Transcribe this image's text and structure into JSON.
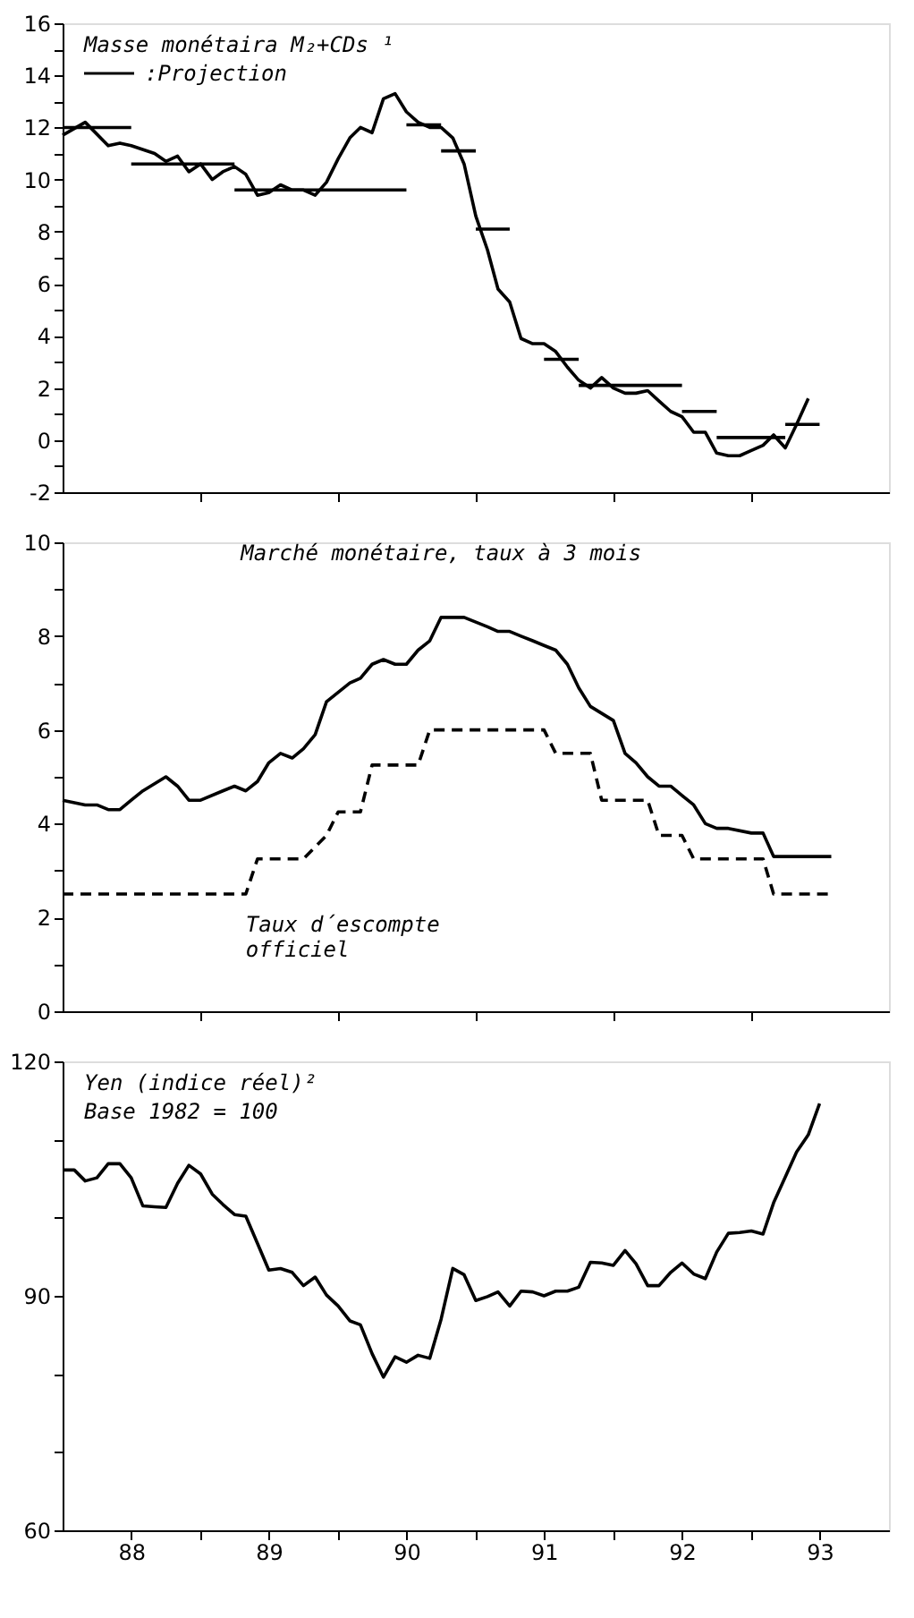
{
  "chart_data": [
    {
      "type": "line",
      "title": "Masse monétaira M₂+CDs ¹",
      "legend": "top left",
      "tick_labels": "y",
      "grid": false,
      "marker": "none",
      "xlim": [
        "1988-01",
        "1994-01"
      ],
      "xticks": [
        {
          "value": "1989-01",
          "label": null
        },
        {
          "value": "1990-01",
          "label": null
        },
        {
          "value": "1991-01",
          "label": null
        },
        {
          "value": "1992-01",
          "label": null
        },
        {
          "value": "1993-01",
          "label": null
        }
      ],
      "ylim": [
        -2,
        16
      ],
      "yticks": [
        -2,
        {
          "value": -1,
          "label": null
        },
        0,
        {
          "value": 1,
          "label": null
        },
        2,
        {
          "value": 3,
          "label": null
        },
        4,
        {
          "value": 5,
          "label": null
        },
        6,
        {
          "value": 7,
          "label": null
        },
        8,
        {
          "value": 9,
          "label": null
        },
        10,
        {
          "value": 11,
          "label": null
        },
        12,
        {
          "value": 13,
          "label": null
        },
        14,
        {
          "value": 15,
          "label": null
        },
        16
      ],
      "series": [
        {
          "color": "#000000",
          "line_style": "solid",
          "x": [
            "1988-01",
            "1988-03",
            "1988-05",
            "1988-06",
            "1988-07",
            "1988-09",
            "1988-10",
            "1988-11",
            "1988-12",
            "1989-01",
            "1989-02",
            "1989-03",
            "1989-04",
            "1989-05",
            "1989-06",
            "1989-07",
            "1989-08",
            "1989-09",
            "1989-10",
            "1989-11",
            "1989-12",
            "1990-01",
            "1990-02",
            "1990-03",
            "1990-04",
            "1990-05",
            "1990-06",
            "1990-07",
            "1990-08",
            "1990-09",
            "1990-10",
            "1990-11",
            "1990-12",
            "1991-01",
            "1991-02",
            "1991-03",
            "1991-04",
            "1991-05",
            "1991-06",
            "1991-07",
            "1991-08",
            "1991-09",
            "1991-10",
            "1991-11",
            "1991-12",
            "1992-01",
            "1992-02",
            "1992-03",
            "1992-04",
            "1992-05",
            "1992-06",
            "1992-07",
            "1992-08",
            "1992-09",
            "1992-10",
            "1992-11",
            "1992-12",
            "1993-01",
            "1993-02",
            "1993-03",
            "1993-04",
            "1993-05",
            "1993-06"
          ],
          "values": [
            11.7,
            12.2,
            11.3,
            11.4,
            11.3,
            11.0,
            10.7,
            10.9,
            10.3,
            10.6,
            10.0,
            10.3,
            10.5,
            10.2,
            9.4,
            9.5,
            9.8,
            9.6,
            9.6,
            9.4,
            9.9,
            10.8,
            11.6,
            12.0,
            11.8,
            13.1,
            13.3,
            12.6,
            12.2,
            12.0,
            12.0,
            11.6,
            10.6,
            8.6,
            7.3,
            5.8,
            5.3,
            3.9,
            3.7,
            3.7,
            3.4,
            2.8,
            2.3,
            2.0,
            2.4,
            2.0,
            1.8,
            1.8,
            1.9,
            1.5,
            1.1,
            0.9,
            0.3,
            0.3,
            -0.5,
            -0.6,
            -0.6,
            -0.4,
            -0.2,
            0.2,
            -0.3,
            0.6,
            1.6
          ]
        },
        {
          "name": ":Projection",
          "color": "#000000",
          "line_style": "solid",
          "x": [
            "1988-01",
            "1988-07",
            null,
            "1988-07",
            "1989-04",
            null,
            "1989-04",
            "1990-07",
            null,
            "1990-07",
            "1990-10",
            null,
            "1990-10",
            "1991-01",
            null,
            "1991-01",
            "1991-04",
            null,
            "1991-07",
            "1991-10",
            null,
            "1991-10",
            "1992-07",
            null,
            "1992-07",
            "1992-10",
            null,
            "1992-10",
            "1993-04",
            null,
            "1993-04",
            "1993-07"
          ],
          "values": [
            12.0,
            12.0,
            null,
            10.6,
            10.6,
            null,
            9.6,
            9.6,
            null,
            12.1,
            12.1,
            null,
            11.1,
            11.1,
            null,
            8.1,
            8.1,
            null,
            3.1,
            3.1,
            null,
            2.1,
            2.1,
            null,
            1.1,
            1.1,
            null,
            0.1,
            0.1,
            null,
            0.6,
            0.6
          ]
        }
      ]
    },
    {
      "type": "line",
      "legend": false,
      "tick_labels": "y",
      "grid": false,
      "marker": "none",
      "xlim": [
        "1988-01",
        "1994-01"
      ],
      "xticks": [
        {
          "value": "1989-01",
          "label": null
        },
        {
          "value": "1990-01",
          "label": null
        },
        {
          "value": "1991-01",
          "label": null
        },
        {
          "value": "1992-01",
          "label": null
        },
        {
          "value": "1993-01",
          "label": null
        }
      ],
      "ylim": [
        0,
        10
      ],
      "yticks": [
        0,
        {
          "value": 1,
          "label": null
        },
        2,
        {
          "value": 3,
          "label": null
        },
        4,
        {
          "value": 5,
          "label": null
        },
        6,
        {
          "value": 7,
          "label": null
        },
        8,
        {
          "value": 9,
          "label": null
        },
        10
      ],
      "series": [
        {
          "name": "Marché monétaire,  taux à 3 mois",
          "color": "#000000",
          "line_style": "solid",
          "x": [
            "1988-01",
            "1988-03",
            "1988-04",
            "1988-05",
            "1988-06",
            "1988-07",
            "1988-08",
            "1988-10",
            "1988-11",
            "1988-12",
            "1989-01",
            "1989-03",
            "1989-04",
            "1989-05",
            "1989-06",
            "1989-07",
            "1989-08",
            "1989-09",
            "1989-10",
            "1989-11",
            "1989-12",
            "1990-01",
            "1990-02",
            "1990-03",
            "1990-04",
            "1990-05",
            "1990-06",
            "1990-07",
            "1990-08",
            "1990-09",
            "1990-10",
            "1990-11",
            "1990-12",
            "1991-01",
            "1991-02",
            "1991-03",
            "1991-04",
            "1991-05",
            "1991-06",
            "1991-07",
            "1991-08",
            "1991-09",
            "1991-10",
            "1991-11",
            "1992-01",
            "1992-02",
            "1992-03",
            "1992-04",
            "1992-05",
            "1992-06",
            "1992-07",
            "1992-08",
            "1992-09",
            "1992-10",
            "1992-11",
            "1993-01",
            "1993-02",
            "1993-03",
            "1993-04",
            "1993-06",
            "1993-08"
          ],
          "values": [
            4.5,
            4.4,
            4.4,
            4.3,
            4.3,
            4.5,
            4.7,
            5.0,
            4.8,
            4.5,
            4.5,
            4.7,
            4.8,
            4.7,
            4.9,
            5.3,
            5.5,
            5.4,
            5.6,
            5.9,
            6.6,
            6.8,
            7.0,
            7.1,
            7.4,
            7.5,
            7.4,
            7.4,
            7.7,
            7.9,
            8.4,
            8.4,
            8.4,
            8.3,
            8.2,
            8.1,
            8.1,
            8.0,
            7.9,
            7.8,
            7.7,
            7.4,
            6.9,
            6.5,
            6.2,
            5.5,
            5.3,
            5.0,
            4.8,
            4.8,
            4.6,
            4.4,
            4.0,
            3.9,
            3.9,
            3.8,
            3.8,
            3.3,
            3.3,
            3.3,
            3.3
          ]
        },
        {
          "name": "Taux d´escompte\nofficiel",
          "color": "#000000",
          "line_style": "dashed",
          "x": [
            "1988-01",
            "1989-05",
            "1989-06",
            "1989-10",
            "1989-12",
            "1990-01",
            "1990-03",
            "1990-04",
            "1990-08",
            "1990-09",
            "1991-07",
            "1991-08",
            "1991-11",
            "1991-12",
            "1992-04",
            "1992-05",
            "1992-07",
            "1992-08",
            "1993-02",
            "1993-03",
            "1993-08"
          ],
          "values": [
            2.5,
            2.5,
            3.25,
            3.25,
            3.75,
            4.25,
            4.25,
            5.25,
            5.25,
            6.0,
            6.0,
            5.5,
            5.5,
            4.5,
            4.5,
            3.75,
            3.75,
            3.25,
            3.25,
            2.5,
            2.5
          ]
        }
      ]
    },
    {
      "type": "line",
      "title": "Yen (indice réel)²",
      "subtitle": "Base 1982 = 100",
      "legend": false,
      "grid": false,
      "marker": "none",
      "xlim": [
        "1988-01",
        "1994-01"
      ],
      "xticks": [
        {
          "value": "1988-07",
          "label": "88"
        },
        {
          "value": "1989-01",
          "label": null
        },
        {
          "value": "1989-07",
          "label": "89"
        },
        {
          "value": "1990-01",
          "label": null
        },
        {
          "value": "1990-07",
          "label": "90"
        },
        {
          "value": "1991-01",
          "label": null
        },
        {
          "value": "1991-07",
          "label": "91"
        },
        {
          "value": "1992-01",
          "label": null
        },
        {
          "value": "1992-07",
          "label": "92"
        },
        {
          "value": "1993-01",
          "label": null
        },
        {
          "value": "1993-07",
          "label": "93"
        }
      ],
      "ylim": [
        60,
        120
      ],
      "yticks": [
        60,
        {
          "value": 70,
          "label": null
        },
        {
          "value": 80,
          "label": null
        },
        90,
        {
          "value": 100,
          "label": null
        },
        {
          "value": 110,
          "label": null
        },
        120
      ],
      "series": [
        {
          "color": "#000000",
          "line_style": "solid",
          "x": [
            "1988-01",
            "1988-02",
            "1988-03",
            "1988-04",
            "1988-05",
            "1988-06",
            "1988-07",
            "1988-08",
            "1988-09",
            "1988-10",
            "1988-11",
            "1988-12",
            "1989-01",
            "1989-02",
            "1989-03",
            "1989-04",
            "1989-05",
            "1989-06",
            "1989-07",
            "1989-08",
            "1989-09",
            "1989-10",
            "1989-11",
            "1989-12",
            "1990-01",
            "1990-02",
            "1990-03",
            "1990-04",
            "1990-05",
            "1990-06",
            "1990-07",
            "1990-08",
            "1990-09",
            "1990-10",
            "1990-11",
            "1990-12",
            "1991-01",
            "1991-02",
            "1991-03",
            "1991-04",
            "1991-05",
            "1991-06",
            "1991-07",
            "1991-08",
            "1991-09",
            "1991-10",
            "1991-11",
            "1991-12",
            "1992-01",
            "1992-02",
            "1992-03",
            "1992-04",
            "1992-05",
            "1992-06",
            "1992-07",
            "1992-08",
            "1992-09",
            "1992-10",
            "1992-11",
            "1992-12",
            "1993-01",
            "1993-02",
            "1993-03",
            "1993-04",
            "1993-05",
            "1993-06",
            "1993-07"
          ],
          "values": [
            106.1,
            106.1,
            104.7,
            105.1,
            106.9,
            106.9,
            105.1,
            101.5,
            101.4,
            101.3,
            104.4,
            106.7,
            105.6,
            103.0,
            101.7,
            100.4,
            100.2,
            96.7,
            93.3,
            93.5,
            93.0,
            91.3,
            92.4,
            90.1,
            88.7,
            86.8,
            86.3,
            82.6,
            79.6,
            82.2,
            81.5,
            82.4,
            82.0,
            87.0,
            93.5,
            92.7,
            89.4,
            89.9,
            90.5,
            88.7,
            90.6,
            90.5,
            90.0,
            90.6,
            90.6,
            91.1,
            94.3,
            94.2,
            93.9,
            95.8,
            94.1,
            91.3,
            91.3,
            93.0,
            94.2,
            92.8,
            92.2,
            95.6,
            98.0,
            98.1,
            98.3,
            97.9,
            101.9,
            105.2,
            108.4,
            110.6,
            114.6
          ]
        }
      ]
    }
  ]
}
